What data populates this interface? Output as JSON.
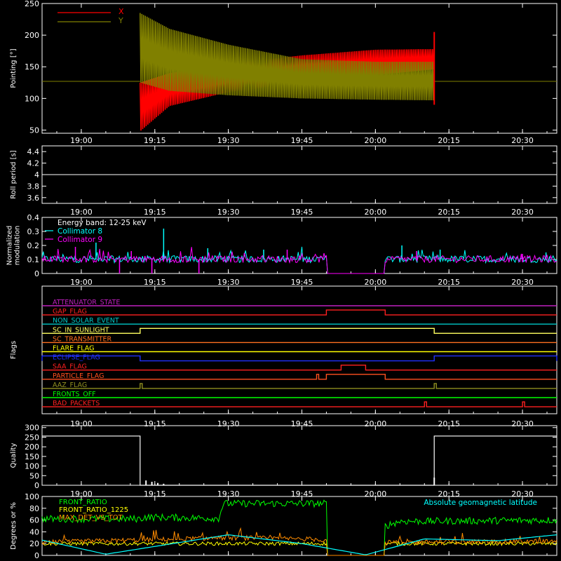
{
  "colors": {
    "background": "#000000",
    "axes": "#ffffff",
    "x_series": "#ff0000",
    "y_series": "#808000",
    "collimator8": "#00ffff",
    "collimator9": "#ff00ff",
    "front_ratio": "#00ff00",
    "front_ratio_1225": "#ffff00",
    "max_det": "#ff8c00",
    "latitude": "#00ffff"
  },
  "chart_data": [
    {
      "type": "line",
      "ylabel": "Pointing [°]",
      "ylim": [
        45,
        250
      ],
      "yticks": [
        50,
        100,
        150,
        200,
        250
      ],
      "xlim": [
        "18:52",
        "20:37"
      ],
      "xtick_labels": [
        "19:00",
        "19:15",
        "19:30",
        "19:45",
        "20:00",
        "20:15",
        "20:30"
      ],
      "legend": [
        "X",
        "Y"
      ],
      "legend_position": "top-left",
      "baseline_before_and_after": 127,
      "active_span": [
        "19:12",
        "20:12"
      ],
      "series": [
        {
          "name": "X",
          "envelope_low": [
            [
              19.2,
              48
            ],
            [
              19.3,
              88
            ],
            [
              19.5,
              110
            ],
            [
              19.75,
              125
            ],
            [
              20.0,
              137
            ],
            [
              20.2,
              146
            ]
          ],
          "envelope_high": [
            [
              19.2,
              125
            ],
            [
              19.3,
              140
            ],
            [
              19.5,
              155
            ],
            [
              19.75,
              168
            ],
            [
              20.0,
              177
            ],
            [
              20.2,
              178
            ]
          ]
        },
        {
          "name": "Y",
          "envelope_low": [
            [
              19.2,
              125
            ],
            [
              19.3,
              112
            ],
            [
              19.5,
              105
            ],
            [
              19.75,
              100
            ],
            [
              20.0,
              98
            ],
            [
              20.2,
              97
            ]
          ],
          "envelope_high": [
            [
              19.2,
              235
            ],
            [
              19.3,
              210
            ],
            [
              19.5,
              185
            ],
            [
              19.75,
              162
            ],
            [
              20.0,
              158
            ],
            [
              20.2,
              158
            ]
          ]
        }
      ]
    },
    {
      "type": "line",
      "ylabel": "Roll period [s]",
      "ylim": [
        3.5,
        4.5
      ],
      "yticks": [
        3.6,
        3.8,
        4.0,
        4.2,
        4.4
      ],
      "xlim": [
        "18:52",
        "20:37"
      ],
      "xtick_labels": [
        "19:00",
        "19:15",
        "19:30",
        "19:45",
        "20:00",
        "20:15",
        "20:30"
      ],
      "series": [
        {
          "name": "",
          "x": [
            "18:52",
            "20:37"
          ],
          "y": [
            4.0,
            4.0
          ]
        }
      ]
    },
    {
      "type": "line",
      "ylabel": "Normalized modulation",
      "ylim": [
        0.0,
        0.4
      ],
      "yticks": [
        0.0,
        0.1,
        0.2,
        0.3,
        0.4
      ],
      "xlim": [
        "18:52",
        "20:37"
      ],
      "xtick_labels": [
        "19:00",
        "19:15",
        "19:30",
        "19:45",
        "20:00",
        "20:15",
        "20:30"
      ],
      "annotation": "Energy band: 12-25 keV",
      "legend": [
        "Collimator 8",
        "Collimator 9"
      ],
      "legend_position": "top-left",
      "data_gap": [
        "19:50",
        "20:02"
      ],
      "series": [
        {
          "name": "Collimator 8",
          "typical": 0.1,
          "peaks": [
            [
              19.05,
              0.22
            ],
            [
              19.28,
              0.32
            ],
            [
              19.43,
              0.18
            ],
            [
              19.62,
              0.17
            ],
            [
              20.09,
              0.2
            ],
            [
              20.22,
              0.17
            ],
            [
              20.58,
              0.15
            ]
          ]
        },
        {
          "name": "Collimator 9",
          "typical": 0.1,
          "peaks": [
            [
              18.98,
              0.19
            ],
            [
              19.17,
              0.16
            ],
            [
              19.7,
              0.17
            ],
            [
              20.14,
              0.16
            ],
            [
              20.5,
              0.14
            ]
          ]
        }
      ]
    },
    {
      "type": "line",
      "ylabel": "Flags",
      "xlim": [
        "18:52",
        "20:37"
      ],
      "xtick_labels": [
        "19:00",
        "19:15",
        "19:30",
        "19:45",
        "20:00",
        "20:15",
        "20:30"
      ],
      "flags": [
        {
          "name": "ATTENUATOR_STATE",
          "color": "#c020c0",
          "high": []
        },
        {
          "name": "GAP_FLAG",
          "color": "#ff2020",
          "high": [
            [
              "19:50",
              "20:02"
            ]
          ]
        },
        {
          "name": "NON_SOLAR_EVENT",
          "color": "#00c8c8",
          "high": []
        },
        {
          "name": "SC_IN_SUNLIGHT",
          "color": "#ffff60",
          "high": [
            [
              "19:12",
              "20:12"
            ]
          ]
        },
        {
          "name": "SC_TRANSMITTER",
          "color": "#ff7020",
          "high": []
        },
        {
          "name": "FLARE_FLAG",
          "color": "#ffff00",
          "high": []
        },
        {
          "name": "ECLIPSE_FLAG",
          "color": "#2030ff",
          "high": [
            [
              "18:52",
              "19:12"
            ],
            [
              "20:12",
              "20:37"
            ]
          ]
        },
        {
          "name": "SAA_FLAG",
          "color": "#ff2020",
          "high": [
            [
              "19:53",
              "19:58"
            ]
          ]
        },
        {
          "name": "PARTICLE_FLAG",
          "color": "#ff5020",
          "high": [
            [
              "19:48",
              "19:48"
            ],
            [
              "19:50",
              "20:02"
            ]
          ]
        },
        {
          "name": "AAZ_FLAG",
          "color": "#909020",
          "high": [
            [
              "19:12",
              "19:12"
            ],
            [
              "20:12",
              "20:12"
            ]
          ]
        },
        {
          "name": "FRONTS_OFF",
          "color": "#00ff00",
          "high": []
        },
        {
          "name": "BAD_PACKETS",
          "color": "#ff2020",
          "high": [
            [
              "20:10",
              "20:10"
            ],
            [
              "20:30",
              "20:30"
            ]
          ]
        }
      ]
    },
    {
      "type": "line",
      "ylabel": "Quality",
      "ylim": [
        0,
        310
      ],
      "yticks": [
        0,
        50,
        100,
        150,
        200,
        250,
        300
      ],
      "xlim": [
        "18:52",
        "20:37"
      ],
      "xtick_labels": [
        "19:00",
        "19:15",
        "19:30",
        "19:45",
        "20:00",
        "20:15",
        "20:30"
      ],
      "series": [
        {
          "name": "",
          "x": [
            "18:52",
            "19:12",
            "19:12",
            "20:12",
            "20:12",
            "20:37"
          ],
          "y": [
            256,
            256,
            0,
            0,
            256,
            256
          ],
          "spikes": [
            [
              19.22,
              25
            ],
            [
              19.24,
              18
            ],
            [
              19.26,
              12
            ],
            [
              19.28,
              8
            ]
          ]
        }
      ]
    },
    {
      "type": "line",
      "ylabel": "Degrees or %",
      "ylim": [
        0,
        100
      ],
      "yticks": [
        0,
        20,
        40,
        60,
        80,
        100
      ],
      "xlim": [
        "18:52",
        "20:37"
      ],
      "xtick_labels": [
        "19:00",
        "19:15",
        "19:30",
        "19:45",
        "20:00",
        "20:15",
        "20:30"
      ],
      "legend": [
        "FRONT_RATIO",
        "FRONT_RATIO_1225",
        "MAX_DET_VS_TOT"
      ],
      "legend_position": "top-left",
      "annotation": "Absolute geomagnetic latitude",
      "data_gap": [
        "19:50",
        "20:02"
      ],
      "series": [
        {
          "name": "FRONT_RATIO",
          "x": [
            "18:52",
            "19:12",
            "19:13",
            "19:28",
            "19:29",
            "19:50",
            "20:02",
            "20:05",
            "20:12",
            "20:37"
          ],
          "y": [
            62,
            62,
            65,
            63,
            88,
            88,
            50,
            58,
            58,
            60
          ]
        },
        {
          "name": "FRONT_RATIO_1225",
          "x": [
            "18:52",
            "20:37"
          ],
          "y": [
            20,
            20
          ]
        },
        {
          "name": "MAX_DET_VS_TOT",
          "x": [
            "18:52",
            "19:30",
            "19:45",
            "20:02",
            "20:37"
          ],
          "y": [
            22,
            30,
            28,
            22,
            24
          ]
        },
        {
          "name": "Absolute geomagnetic latitude",
          "x": [
            "18:52",
            "19:05",
            "19:30",
            "19:45",
            "19:58",
            "20:10",
            "20:25",
            "20:37"
          ],
          "y": [
            26,
            2,
            35,
            20,
            1,
            28,
            25,
            35
          ]
        }
      ]
    }
  ]
}
